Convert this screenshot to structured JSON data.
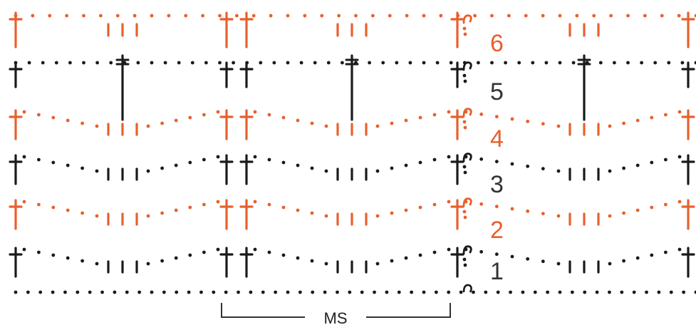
{
  "colors": {
    "odd_rows": "#1a1a1a",
    "even_rows": "#e8602c",
    "background": "#ffffff",
    "bracket": "#333333"
  },
  "row_numbers": [
    "1",
    "2",
    "3",
    "4",
    "5",
    "6"
  ],
  "repeat_label": "MS",
  "symbols": [
    "chain-dot",
    "treble-crochet",
    "double-treble-crochet",
    "short-post",
    "turning-chain-arc",
    "slip-stitch-loop"
  ]
}
